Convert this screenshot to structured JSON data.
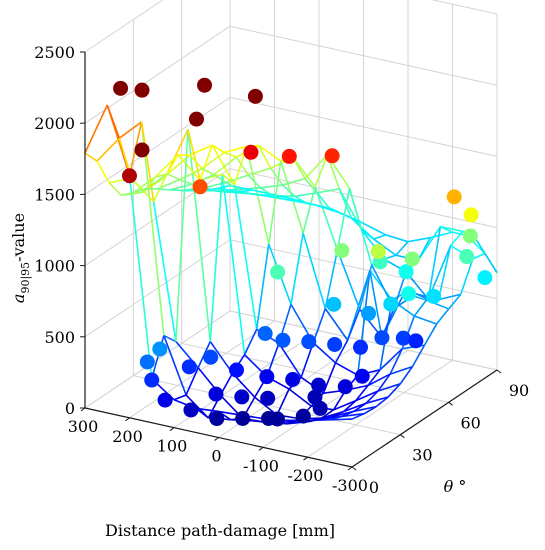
{
  "chart_data": {
    "type": "scatter",
    "subtype": "3d-scatter-with-wireframe-surface",
    "title": "",
    "xlabel": "Distance path-damage [mm]",
    "ylabel": "θ °",
    "zlabel": "a90|95-value",
    "zlabel_main": "a",
    "zlabel_sub": "90|95",
    "zlabel_suffix": "-value",
    "xlim": [
      -300,
      300
    ],
    "ylim": [
      0,
      90
    ],
    "zlim": [
      0,
      2500
    ],
    "x_ticks": [
      "300",
      "200",
      "100",
      "0",
      "-100",
      "-200",
      "-300"
    ],
    "y_ticks": [
      "0",
      "30",
      "60",
      "90"
    ],
    "z_ticks": [
      "0",
      "500",
      "1000",
      "1500",
      "2000",
      "2500"
    ],
    "grid": true,
    "colormap": "jet",
    "colormap_stops": [
      "#00008f",
      "#0000ff",
      "#0080ff",
      "#00ffff",
      "#80ff80",
      "#ffff00",
      "#ff8000",
      "#ff0000",
      "#800000"
    ],
    "series": [
      {
        "type": "scatter",
        "points": [
          {
            "x": 220,
            "y": 0,
            "z": 2300
          },
          {
            "x": 190,
            "y": 5,
            "z": 2270
          },
          {
            "x": 140,
            "y": 30,
            "z": 2150
          },
          {
            "x": 190,
            "y": 5,
            "z": 1850
          },
          {
            "x": 200,
            "y": 0,
            "z": 1700
          },
          {
            "x": 140,
            "y": 25,
            "z": 1950
          },
          {
            "x": 80,
            "y": 45,
            "z": 2000
          },
          {
            "x": 90,
            "y": 45,
            "z": 1600
          },
          {
            "x": 40,
            "y": 55,
            "z": 1530
          },
          {
            "x": 150,
            "y": 30,
            "z": 1430
          },
          {
            "x": -20,
            "y": 65,
            "z": 1500
          },
          {
            "x": -240,
            "y": 80,
            "z": 1250
          },
          {
            "x": -260,
            "y": 85,
            "z": 1100
          },
          {
            "x": -240,
            "y": 90,
            "z": 900
          },
          {
            "x": -250,
            "y": 85,
            "z": 800
          },
          {
            "x": -280,
            "y": 88,
            "z": 650
          },
          {
            "x": -150,
            "y": 75,
            "z": 700
          },
          {
            "x": -60,
            "y": 60,
            "z": 900
          },
          {
            "x": -110,
            "y": 70,
            "z": 780
          },
          {
            "x": -230,
            "y": 70,
            "z": 620
          },
          {
            "x": 30,
            "y": 45,
            "z": 800
          },
          {
            "x": -60,
            "y": 55,
            "z": 560
          },
          {
            "x": -120,
            "y": 60,
            "z": 500
          },
          {
            "x": 40,
            "y": 40,
            "z": 400
          },
          {
            "x": 0,
            "y": 40,
            "z": 380
          },
          {
            "x": -40,
            "y": 45,
            "z": 360
          },
          {
            "x": -80,
            "y": 50,
            "z": 330
          },
          {
            "x": -120,
            "y": 55,
            "z": 300
          },
          {
            "x": -150,
            "y": 60,
            "z": 350
          },
          {
            "x": -170,
            "y": 60,
            "z": 600
          },
          {
            "x": -180,
            "y": 65,
            "z": 330
          },
          {
            "x": -190,
            "y": 70,
            "z": 280
          },
          {
            "x": -160,
            "y": 45,
            "z": 200
          },
          {
            "x": -140,
            "y": 40,
            "z": 150
          },
          {
            "x": 90,
            "y": 20,
            "z": 350
          },
          {
            "x": 120,
            "y": 15,
            "z": 300
          },
          {
            "x": 50,
            "y": 25,
            "z": 250
          },
          {
            "x": 0,
            "y": 30,
            "z": 200
          },
          {
            "x": -40,
            "y": 35,
            "z": 170
          },
          {
            "x": -80,
            "y": 40,
            "z": 120
          },
          {
            "x": -90,
            "y": 35,
            "z": 80
          },
          {
            "x": 150,
            "y": 5,
            "z": 480
          },
          {
            "x": 160,
            "y": 0,
            "z": 420
          },
          {
            "x": 150,
            "y": 0,
            "z": 300
          },
          {
            "x": 120,
            "y": 0,
            "z": 180
          },
          {
            "x": 80,
            "y": 5,
            "z": 100
          },
          {
            "x": 40,
            "y": 10,
            "z": 30
          },
          {
            "x": 0,
            "y": 15,
            "z": 20
          },
          {
            "x": -40,
            "y": 20,
            "z": 10
          },
          {
            "x": -60,
            "y": 20,
            "z": 20
          },
          {
            "x": -100,
            "y": 25,
            "z": 30
          },
          {
            "x": -120,
            "y": 30,
            "z": 60
          },
          {
            "x": 60,
            "y": 15,
            "z": 150
          },
          {
            "x": 20,
            "y": 20,
            "z": 120
          },
          {
            "x": -20,
            "y": 25,
            "z": 100
          },
          {
            "x": -160,
            "y": 55,
            "z": 1000
          },
          {
            "x": -200,
            "y": 65,
            "z": 900
          },
          {
            "x": -210,
            "y": 60,
            "z": 700
          }
        ]
      }
    ],
    "surface": {
      "x": [
        -300,
        -250,
        -200,
        -150,
        -100,
        -50,
        0,
        50,
        100,
        150,
        200,
        250,
        300
      ],
      "y": [
        0,
        7.5,
        15,
        22.5,
        30,
        37.5,
        45,
        52.5,
        60,
        67.5,
        75,
        82.5,
        90
      ]
    }
  }
}
